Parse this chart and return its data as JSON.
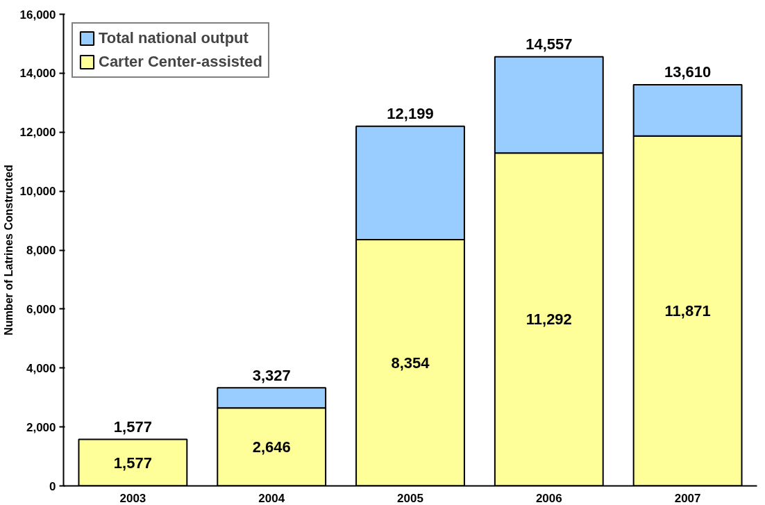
{
  "chart_data": {
    "type": "bar",
    "stacked": true,
    "ylabel": "Number of Latrines Constructed",
    "categories": [
      "2003",
      "2004",
      "2005",
      "2006",
      "2007"
    ],
    "series": [
      {
        "name": "Carter Center-assisted",
        "color": "#ffff99",
        "values": [
          1577,
          2646,
          8354,
          11292,
          11871
        ],
        "value_labels": [
          "1,577",
          "2,646",
          "8,354",
          "11,292",
          "11,871"
        ]
      },
      {
        "name": "Total national output",
        "color": "#99ccff",
        "values": [
          null,
          681,
          3845,
          3265,
          1739
        ]
      }
    ],
    "totals": [
      "1,577",
      "3,327",
      "12,199",
      "14,557",
      "13,610"
    ],
    "ylim": [
      0,
      16000
    ],
    "yticks": [
      0,
      {
        "value": 2000,
        "label": "2,000"
      },
      {
        "value": 4000,
        "label": "4,000"
      },
      {
        "value": 6000,
        "label": "6,000"
      },
      {
        "value": 8000,
        "label": "8,000"
      },
      {
        "value": 10000,
        "label": "10,000"
      },
      {
        "value": 12000,
        "label": "12,000"
      },
      {
        "value": 14000,
        "label": "14,000"
      },
      {
        "value": 16000,
        "label": "16,000"
      }
    ],
    "grid": false,
    "legend": "top left"
  }
}
